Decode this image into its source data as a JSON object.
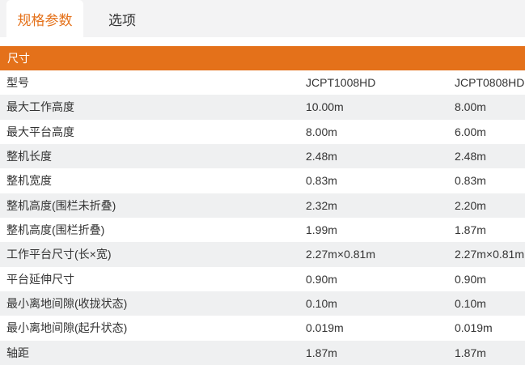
{
  "tabs": [
    {
      "label": "规格参数",
      "active": true
    },
    {
      "label": "选项",
      "active": false
    }
  ],
  "section_header": "尺寸",
  "table": {
    "rows": [
      {
        "label": "型号",
        "model1": "JCPT1008HD",
        "model2": "JCPT0808HD"
      },
      {
        "label": "最大工作高度",
        "model1": "10.00m",
        "model2": "8.00m"
      },
      {
        "label": "最大平台高度",
        "model1": "8.00m",
        "model2": "6.00m"
      },
      {
        "label": "整机长度",
        "model1": "2.48m",
        "model2": "2.48m"
      },
      {
        "label": "整机宽度",
        "model1": "0.83m",
        "model2": "0.83m"
      },
      {
        "label": "整机高度(围栏未折叠)",
        "model1": "2.32m",
        "model2": "2.20m"
      },
      {
        "label": "整机高度(围栏折叠)",
        "model1": "1.99m",
        "model2": "1.87m"
      },
      {
        "label": "工作平台尺寸(长×宽)",
        "model1": "2.27m×0.81m",
        "model2": "2.27m×0.81m"
      },
      {
        "label": "平台延伸尺寸",
        "model1": "0.90m",
        "model2": "0.90m"
      },
      {
        "label": "最小离地间隙(收拢状态)",
        "model1": "0.10m",
        "model2": "0.10m"
      },
      {
        "label": "最小离地间隙(起升状态)",
        "model1": "0.019m",
        "model2": "0.019m"
      },
      {
        "label": "轴距",
        "model1": "1.87m",
        "model2": "1.87m"
      }
    ]
  },
  "colors": {
    "accent": "#e4711a",
    "row_alt": "#eff0f1",
    "tabstrip_bg": "#f3f3f4",
    "text": "#333333"
  }
}
